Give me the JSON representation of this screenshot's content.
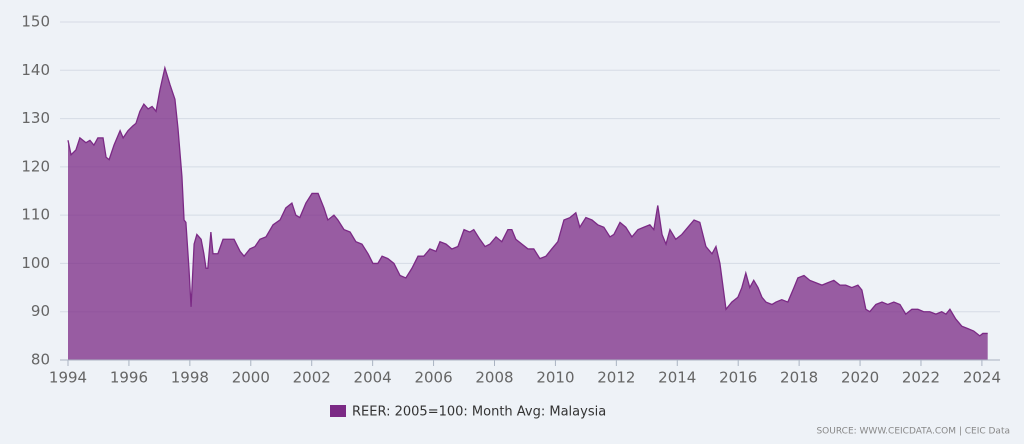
{
  "chart_data": {
    "type": "area",
    "x": [
      1994.0,
      1994.1,
      1994.26,
      1994.39,
      1994.59,
      1994.72,
      1994.85,
      1994.98,
      1995.15,
      1995.25,
      1995.35,
      1995.51,
      1995.71,
      1995.81,
      1995.97,
      1996.13,
      1996.23,
      1996.36,
      1996.49,
      1996.63,
      1996.76,
      1996.89,
      1997.02,
      1997.18,
      1997.35,
      1997.51,
      1997.61,
      1997.74,
      1997.81,
      1997.87,
      1997.97,
      1998.04,
      1998.14,
      1998.23,
      1998.37,
      1998.46,
      1998.53,
      1998.59,
      1998.69,
      1998.76,
      1998.92,
      1999.09,
      1999.25,
      1999.45,
      1999.65,
      1999.78,
      1999.97,
      2000.14,
      2000.3,
      2000.5,
      2000.73,
      2000.96,
      2001.15,
      2001.35,
      2001.48,
      2001.61,
      2001.81,
      2002.01,
      2002.21,
      2002.4,
      2002.53,
      2002.73,
      2002.86,
      2003.06,
      2003.26,
      2003.45,
      2003.65,
      2003.85,
      2004.01,
      2004.17,
      2004.31,
      2004.5,
      2004.7,
      2004.9,
      2005.09,
      2005.29,
      2005.49,
      2005.68,
      2005.88,
      2006.08,
      2006.21,
      2006.41,
      2006.6,
      2006.8,
      2007.0,
      2007.19,
      2007.32,
      2007.52,
      2007.69,
      2007.85,
      2008.05,
      2008.24,
      2008.44,
      2008.57,
      2008.7,
      2008.9,
      2009.1,
      2009.29,
      2009.49,
      2009.69,
      2009.88,
      2010.08,
      2010.28,
      2010.48,
      2010.67,
      2010.8,
      2011.0,
      2011.2,
      2011.39,
      2011.59,
      2011.79,
      2011.92,
      2012.12,
      2012.31,
      2012.51,
      2012.71,
      2012.9,
      2013.1,
      2013.23,
      2013.36,
      2013.5,
      2013.63,
      2013.76,
      2013.95,
      2014.15,
      2014.35,
      2014.55,
      2014.74,
      2014.94,
      2015.14,
      2015.27,
      2015.4,
      2015.6,
      2015.79,
      2015.99,
      2016.12,
      2016.25,
      2016.38,
      2016.51,
      2016.65,
      2016.78,
      2016.91,
      2017.11,
      2017.24,
      2017.43,
      2017.63,
      2017.83,
      2017.96,
      2018.16,
      2018.35,
      2018.55,
      2018.75,
      2018.94,
      2019.14,
      2019.34,
      2019.53,
      2019.73,
      2019.93,
      2020.06,
      2020.19,
      2020.32,
      2020.52,
      2020.72,
      2020.91,
      2021.11,
      2021.31,
      2021.5,
      2021.7,
      2021.9,
      2022.09,
      2022.29,
      2022.49,
      2022.68,
      2022.82,
      2022.95,
      2023.14,
      2023.34,
      2023.54,
      2023.73,
      2023.93,
      2024.03,
      2024.19
    ],
    "series": [
      {
        "name": "REER: 2005=100: Month Avg: Malaysia",
        "color": "#7b2a85",
        "values": [
          125.5,
          122.5,
          123.5,
          126,
          125,
          125.5,
          124.5,
          126,
          126,
          122,
          121.5,
          124.5,
          127.5,
          126,
          127.5,
          128.5,
          129,
          131.5,
          133,
          132,
          132.5,
          131.5,
          136,
          140.5,
          137,
          134,
          128,
          118,
          109,
          108.5,
          99,
          91,
          104,
          106,
          105,
          102,
          99,
          99,
          106.5,
          102,
          102,
          105,
          105,
          105,
          102.5,
          101.5,
          103,
          103.5,
          105,
          105.5,
          108,
          109,
          111.5,
          112.5,
          110,
          109.5,
          112.5,
          114.5,
          114.5,
          111.5,
          109,
          110,
          109,
          107,
          106.5,
          104.5,
          104,
          102,
          100,
          100,
          101.5,
          101,
          100,
          97.5,
          97,
          99,
          101.5,
          101.5,
          103,
          102.5,
          104.5,
          104,
          103,
          103.5,
          107,
          106.5,
          107,
          105,
          103.5,
          104,
          105.5,
          104.5,
          107,
          107,
          105,
          104,
          103,
          103,
          101,
          101.5,
          103,
          104.5,
          109,
          109.5,
          110.5,
          107.5,
          109.5,
          109,
          108,
          107.5,
          105.5,
          106,
          108.5,
          107.5,
          105.5,
          107,
          107.5,
          108,
          107,
          112,
          106,
          104,
          107,
          105,
          106,
          107.5,
          109,
          108.5,
          103.5,
          102,
          103.5,
          100,
          90.5,
          92,
          93,
          95,
          98,
          95,
          96.5,
          95,
          93,
          92,
          91.5,
          92,
          92.5,
          92,
          95,
          97,
          97.5,
          96.5,
          96,
          95.5,
          96,
          96.5,
          95.5,
          95.5,
          95,
          95.5,
          94.5,
          90.5,
          90,
          91.5,
          92,
          91.5,
          92,
          91.5,
          89.5,
          90.5,
          90.5,
          90,
          90,
          89.5,
          90,
          89.5,
          90.5,
          88.5,
          87,
          86.5,
          86,
          85,
          85.5,
          85.5
        ]
      }
    ],
    "xlim": [
      1994,
      2024.2
    ],
    "xticks": [
      1994,
      1996,
      1998,
      2000,
      2002,
      2004,
      2006,
      2008,
      2010,
      2012,
      2014,
      2016,
      2018,
      2020,
      2022,
      2024
    ],
    "ylim": [
      80,
      150
    ],
    "yticks": [
      80,
      90,
      100,
      110,
      120,
      130,
      140,
      150
    ],
    "grid": true,
    "legend": "bottom",
    "source": "SOURCE: WWW.CEICDATA.COM | CEIC Data"
  }
}
